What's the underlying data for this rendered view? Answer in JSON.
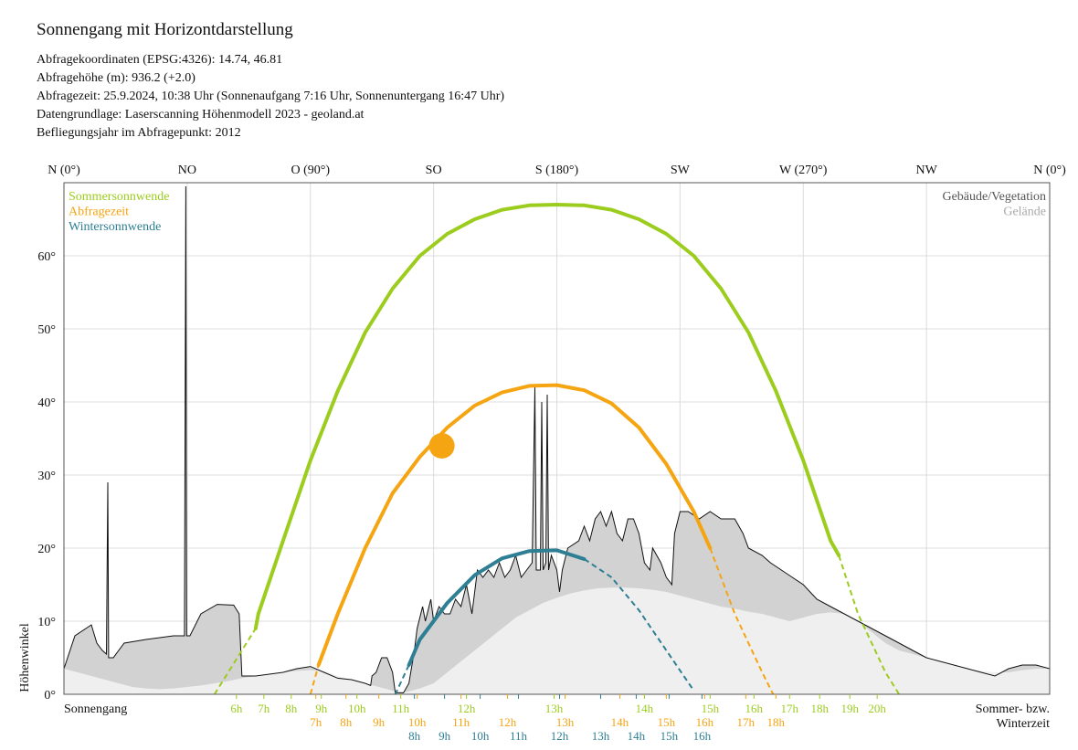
{
  "header": {
    "title": "Sonnengang mit Horizontdarstellung",
    "lines": [
      "Abfragekoordinaten (EPSG:4326): 14.74, 46.81",
      "Abfragehöhe (m): 936.2 (+2.0)",
      "Abfragezeit: 25.9.2024, 10:38 Uhr (Sonnenaufgang 7:16 Uhr,  Sonnenuntergang 16:47 Uhr)",
      "Datengrundlage: Laserscanning Höhenmodell 2023 - geoland.at",
      "Befliegungsjahr im Abfragepunkt: 2012"
    ]
  },
  "colors": {
    "summer": "#9ccc1e",
    "query": "#f5a412",
    "winter": "#2e7f94",
    "vegetation_fill": "#d2d2d2",
    "terrain_fill": "#efefef",
    "grid": "#dcdcdc",
    "outline": "#111111",
    "sun": "#f5a412"
  },
  "chart_data": {
    "type": "line",
    "xlabel": "",
    "ylabel": "Höhenwinkel",
    "xlim": [
      0,
      360
    ],
    "ylim": [
      0,
      70
    ],
    "y_ticks": [
      0,
      10,
      20,
      30,
      40,
      50,
      60
    ],
    "y_tick_labels": [
      "0°",
      "10°",
      "20°",
      "30°",
      "40°",
      "50°",
      "60°"
    ],
    "top_ticks": [
      {
        "az": 0,
        "label": "N (0°)"
      },
      {
        "az": 45,
        "label": "NO"
      },
      {
        "az": 90,
        "label": "O (90°)"
      },
      {
        "az": 135,
        "label": "SO"
      },
      {
        "az": 180,
        "label": "S (180°)"
      },
      {
        "az": 225,
        "label": "SW"
      },
      {
        "az": 270,
        "label": "W (270°)"
      },
      {
        "az": 315,
        "label": "NW"
      },
      {
        "az": 360,
        "label": "N (0°)"
      }
    ],
    "grid": true,
    "legend_left": [
      {
        "label": "Sommersonnwende",
        "color_key": "summer"
      },
      {
        "label": "Abfragezeit",
        "color_key": "query"
      },
      {
        "label": "Wintersonnwende",
        "color_key": "winter"
      }
    ],
    "legend_right": [
      {
        "label": "Gebäude/Vegetation",
        "color": "#555555"
      },
      {
        "label": "Gelände",
        "color": "#aaaaaa"
      }
    ],
    "bottom_left_label": "Sonnengang",
    "bottom_right_label": [
      "Sommer- bzw.",
      "Winterzeit"
    ],
    "sun_position": {
      "az": 138,
      "alt": 34
    },
    "series": [
      {
        "name": "Sommersonnwende",
        "color_key": "summer",
        "visible": [
          [
            70,
            9
          ],
          [
            71,
            11
          ],
          [
            80,
            21
          ],
          [
            90,
            32
          ],
          [
            100,
            41.5
          ],
          [
            110,
            49.5
          ],
          [
            120,
            55.5
          ],
          [
            130,
            60
          ],
          [
            140,
            63
          ],
          [
            150,
            65
          ],
          [
            160,
            66.3
          ],
          [
            170,
            66.9
          ],
          [
            180,
            67
          ],
          [
            190,
            66.9
          ],
          [
            200,
            66.3
          ],
          [
            210,
            65
          ],
          [
            220,
            63
          ],
          [
            230,
            60
          ],
          [
            240,
            55.5
          ],
          [
            250,
            49.5
          ],
          [
            260,
            41.5
          ],
          [
            270,
            32
          ],
          [
            280,
            21
          ],
          [
            283,
            19
          ]
        ],
        "hidden": [
          [
            55,
            0
          ],
          [
            60,
            3
          ],
          [
            65,
            6
          ],
          [
            70,
            9
          ],
          [
            71,
            11
          ]
        ],
        "hidden2": [
          [
            283,
            19
          ],
          [
            290,
            11
          ],
          [
            300,
            3
          ],
          [
            305,
            0
          ]
        ]
      },
      {
        "name": "Abfragezeit",
        "color_key": "query",
        "visible": [
          [
            93,
            4
          ],
          [
            100,
            11
          ],
          [
            110,
            20
          ],
          [
            120,
            27.5
          ],
          [
            130,
            32.5
          ],
          [
            140,
            36.5
          ],
          [
            150,
            39.5
          ],
          [
            160,
            41.3
          ],
          [
            170,
            42.2
          ],
          [
            180,
            42.3
          ],
          [
            190,
            41.6
          ],
          [
            200,
            39.8
          ],
          [
            210,
            36.5
          ],
          [
            220,
            31.5
          ],
          [
            230,
            25
          ],
          [
            236,
            20
          ]
        ],
        "hidden": [
          [
            90,
            0
          ],
          [
            93,
            4
          ]
        ],
        "hidden2": [
          [
            236,
            20
          ],
          [
            245,
            11
          ],
          [
            255,
            3
          ],
          [
            259,
            0
          ]
        ]
      },
      {
        "name": "Wintersonnwende",
        "color_key": "winter",
        "visible": [
          [
            126,
            4
          ],
          [
            130,
            7.5
          ],
          [
            140,
            12.5
          ],
          [
            150,
            16.3
          ],
          [
            160,
            18.6
          ],
          [
            170,
            19.6
          ],
          [
            180,
            19.7
          ],
          [
            190,
            18.5
          ]
        ],
        "hidden": [
          [
            126,
            4
          ],
          [
            121,
            0
          ]
        ],
        "hidden2": [
          [
            190,
            18.5
          ],
          [
            200,
            16
          ],
          [
            210,
            11.5
          ],
          [
            220,
            6
          ],
          [
            230,
            0.5
          ]
        ]
      }
    ],
    "horizon": {
      "vegetation": [
        [
          0,
          3.5
        ],
        [
          4,
          8
        ],
        [
          10,
          9.5
        ],
        [
          12,
          7
        ],
        [
          14,
          6
        ],
        [
          15.5,
          5.5
        ],
        [
          16,
          29
        ],
        [
          16.3,
          5
        ],
        [
          18,
          5
        ],
        [
          22,
          7
        ],
        [
          30,
          7.5
        ],
        [
          40,
          8
        ],
        [
          44,
          8
        ],
        [
          44.5,
          69.5
        ],
        [
          44.8,
          8
        ],
        [
          46,
          8
        ],
        [
          50,
          11
        ],
        [
          56,
          12.3
        ],
        [
          62,
          12.2
        ],
        [
          64,
          11
        ],
        [
          65,
          2.5
        ],
        [
          70,
          2.5
        ],
        [
          80,
          3
        ],
        [
          85,
          3.5
        ],
        [
          90,
          3.8
        ],
        [
          95,
          3
        ],
        [
          100,
          2.2
        ],
        [
          105,
          2
        ],
        [
          110,
          1.5
        ],
        [
          112,
          1.2
        ],
        [
          112.5,
          2.5
        ],
        [
          114,
          3
        ],
        [
          116,
          5
        ],
        [
          118,
          5
        ],
        [
          120,
          3
        ],
        [
          121,
          0.2
        ],
        [
          124,
          0.2
        ],
        [
          126,
          1.5
        ],
        [
          128,
          6
        ],
        [
          129,
          9
        ],
        [
          131,
          12
        ],
        [
          132,
          10
        ],
        [
          134,
          13
        ],
        [
          135,
          10
        ],
        [
          137,
          12
        ],
        [
          139,
          11
        ],
        [
          141,
          11
        ],
        [
          143,
          13
        ],
        [
          145,
          12
        ],
        [
          147,
          15
        ],
        [
          149,
          11
        ],
        [
          151,
          17
        ],
        [
          153,
          16
        ],
        [
          155,
          17
        ],
        [
          157,
          16
        ],
        [
          159,
          18
        ],
        [
          161,
          16
        ],
        [
          163,
          17
        ],
        [
          165,
          19
        ],
        [
          167,
          16
        ],
        [
          169,
          17
        ],
        [
          171,
          18
        ],
        [
          172,
          42
        ],
        [
          172.5,
          17
        ],
        [
          174,
          17
        ],
        [
          174.5,
          40
        ],
        [
          175,
          17
        ],
        [
          176,
          18
        ],
        [
          176.5,
          41
        ],
        [
          177,
          17
        ],
        [
          178,
          19
        ],
        [
          180,
          17
        ],
        [
          181,
          14
        ],
        [
          182,
          17
        ],
        [
          184,
          20
        ],
        [
          188,
          21
        ],
        [
          190,
          23
        ],
        [
          192,
          21
        ],
        [
          194,
          24
        ],
        [
          196,
          25
        ],
        [
          198,
          23
        ],
        [
          200,
          25
        ],
        [
          202,
          22
        ],
        [
          204,
          21
        ],
        [
          206,
          24
        ],
        [
          208,
          24
        ],
        [
          210,
          22
        ],
        [
          211,
          20
        ],
        [
          212,
          18
        ],
        [
          214,
          17
        ],
        [
          215,
          20
        ],
        [
          218,
          18
        ],
        [
          220,
          16
        ],
        [
          222,
          15
        ],
        [
          223,
          22
        ],
        [
          225,
          25
        ],
        [
          228,
          25
        ],
        [
          232,
          24
        ],
        [
          236,
          25
        ],
        [
          240,
          24
        ],
        [
          245,
          24
        ],
        [
          248,
          22
        ],
        [
          250,
          20
        ],
        [
          255,
          19
        ],
        [
          258,
          18
        ],
        [
          262,
          17
        ],
        [
          266,
          16
        ],
        [
          270,
          15
        ],
        [
          275,
          13
        ],
        [
          280,
          12
        ],
        [
          285,
          11
        ],
        [
          290,
          10
        ],
        [
          295,
          9
        ],
        [
          300,
          8
        ],
        [
          305,
          7
        ],
        [
          310,
          6
        ],
        [
          315,
          5
        ],
        [
          320,
          4.5
        ],
        [
          325,
          4
        ],
        [
          330,
          3.5
        ],
        [
          335,
          3
        ],
        [
          340,
          2.5
        ],
        [
          345,
          3.5
        ],
        [
          350,
          4
        ],
        [
          355,
          4
        ],
        [
          360,
          3.5
        ]
      ],
      "terrain": [
        [
          0,
          3.5
        ],
        [
          5,
          3
        ],
        [
          10,
          2.5
        ],
        [
          15,
          2
        ],
        [
          20,
          1.5
        ],
        [
          25,
          1
        ],
        [
          30,
          0.8
        ],
        [
          35,
          0.7
        ],
        [
          40,
          0.8
        ],
        [
          45,
          1
        ],
        [
          50,
          1.2
        ],
        [
          55,
          1.5
        ],
        [
          60,
          1.8
        ],
        [
          65,
          2.2
        ],
        [
          70,
          2.5
        ],
        [
          75,
          2.8
        ],
        [
          80,
          3
        ],
        [
          85,
          3.2
        ],
        [
          90,
          3.3
        ],
        [
          95,
          3.2
        ],
        [
          100,
          2.5
        ],
        [
          105,
          2
        ],
        [
          110,
          1.5
        ],
        [
          115,
          1
        ],
        [
          120,
          0.5
        ],
        [
          125,
          0.3
        ],
        [
          130,
          0.8
        ],
        [
          135,
          1.5
        ],
        [
          140,
          3
        ],
        [
          145,
          4.5
        ],
        [
          150,
          6
        ],
        [
          155,
          7.5
        ],
        [
          160,
          9
        ],
        [
          165,
          10.5
        ],
        [
          170,
          11.5
        ],
        [
          175,
          12.5
        ],
        [
          180,
          13.2
        ],
        [
          185,
          13.8
        ],
        [
          190,
          14.2
        ],
        [
          195,
          14.5
        ],
        [
          200,
          14.6
        ],
        [
          205,
          14.6
        ],
        [
          210,
          14.5
        ],
        [
          215,
          14.3
        ],
        [
          220,
          14
        ],
        [
          225,
          13.5
        ],
        [
          230,
          13
        ],
        [
          235,
          12.5
        ],
        [
          240,
          12
        ],
        [
          245,
          11.7
        ],
        [
          250,
          11.3
        ],
        [
          255,
          11
        ],
        [
          260,
          10.5
        ],
        [
          265,
          10
        ],
        [
          270,
          10.5
        ],
        [
          275,
          11
        ],
        [
          280,
          11.2
        ],
        [
          285,
          11
        ],
        [
          290,
          10
        ],
        [
          295,
          8.5
        ],
        [
          300,
          7
        ],
        [
          305,
          6
        ],
        [
          310,
          5.5
        ],
        [
          315,
          5
        ],
        [
          320,
          4.5
        ],
        [
          325,
          4
        ],
        [
          330,
          3.5
        ],
        [
          335,
          3.2
        ],
        [
          340,
          3
        ],
        [
          345,
          3
        ],
        [
          350,
          3.3
        ],
        [
          355,
          3.5
        ],
        [
          360,
          3.5
        ]
      ]
    },
    "time_rows": [
      {
        "color_key": "summer",
        "labels": [
          {
            "az": 63,
            "text": "6h"
          },
          {
            "az": 73,
            "text": "7h"
          },
          {
            "az": 83,
            "text": "8h"
          },
          {
            "az": 94,
            "text": "9h"
          },
          {
            "az": 107,
            "text": "10h"
          },
          {
            "az": 123,
            "text": "11h"
          },
          {
            "az": 147,
            "text": "12h"
          },
          {
            "az": 179,
            "text": "13h"
          },
          {
            "az": 212,
            "text": "14h"
          },
          {
            "az": 236,
            "text": "15h"
          },
          {
            "az": 252,
            "text": "16h"
          },
          {
            "az": 265,
            "text": "17h"
          },
          {
            "az": 276,
            "text": "18h"
          },
          {
            "az": 287,
            "text": "19h"
          },
          {
            "az": 297,
            "text": "20h"
          }
        ]
      },
      {
        "color_key": "query",
        "labels": [
          {
            "az": 92,
            "text": "7h"
          },
          {
            "az": 103,
            "text": "8h"
          },
          {
            "az": 115,
            "text": "9h"
          },
          {
            "az": 129,
            "text": "10h"
          },
          {
            "az": 145,
            "text": "11h"
          },
          {
            "az": 162,
            "text": "12h"
          },
          {
            "az": 183,
            "text": "13h"
          },
          {
            "az": 203,
            "text": "14h"
          },
          {
            "az": 220,
            "text": "15h"
          },
          {
            "az": 234,
            "text": "16h"
          },
          {
            "az": 249,
            "text": "17h"
          },
          {
            "az": 260,
            "text": "18h"
          }
        ]
      },
      {
        "color_key": "winter",
        "labels": [
          {
            "az": 128,
            "text": "8h"
          },
          {
            "az": 139,
            "text": "9h"
          },
          {
            "az": 152,
            "text": "10h"
          },
          {
            "az": 166,
            "text": "11h"
          },
          {
            "az": 181,
            "text": "12h"
          },
          {
            "az": 196,
            "text": "13h"
          },
          {
            "az": 209,
            "text": "14h"
          },
          {
            "az": 221,
            "text": "15h"
          },
          {
            "az": 233,
            "text": "16h"
          }
        ]
      }
    ]
  }
}
